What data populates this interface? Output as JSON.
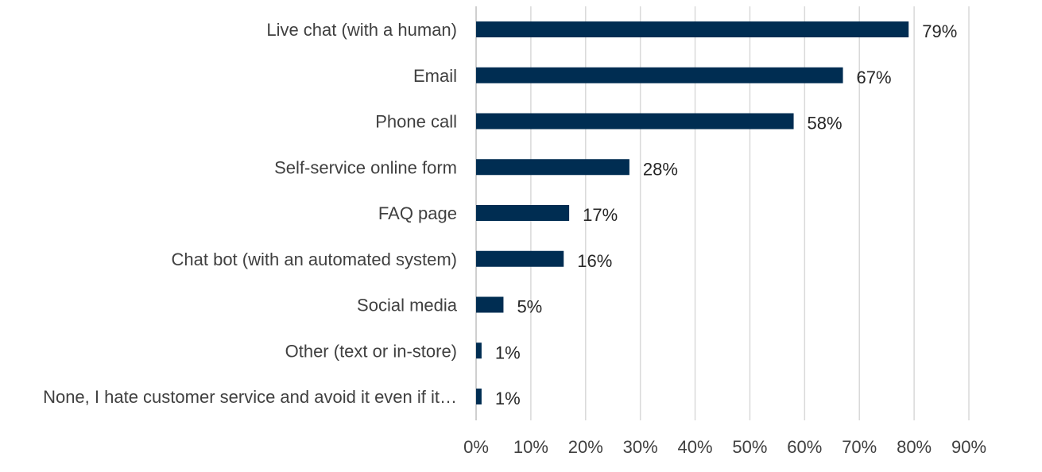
{
  "chart_data": {
    "type": "bar",
    "orientation": "horizontal",
    "title": "",
    "xlabel": "",
    "ylabel": "",
    "categories": [
      "Live chat (with a human)",
      "Email",
      "Phone call",
      "Self-service online form",
      "FAQ page",
      "Chat bot (with an automated system)",
      "Social media",
      "Other (text or in-store)",
      "None, I hate customer service and avoid it even if it…"
    ],
    "values": [
      79,
      67,
      58,
      28,
      17,
      16,
      5,
      1,
      1
    ],
    "value_labels": [
      "79%",
      "67%",
      "58%",
      "28%",
      "17%",
      "16%",
      "5%",
      "1%",
      "1%"
    ],
    "xlim": [
      0,
      90
    ],
    "ticks": [
      0,
      10,
      20,
      30,
      40,
      50,
      60,
      70,
      80,
      90
    ],
    "tick_labels": [
      "0%",
      "10%",
      "20%",
      "30%",
      "40%",
      "50%",
      "60%",
      "70%",
      "80%",
      "90%"
    ],
    "grid": true,
    "legend": "none",
    "bar_color": "#002d52"
  }
}
